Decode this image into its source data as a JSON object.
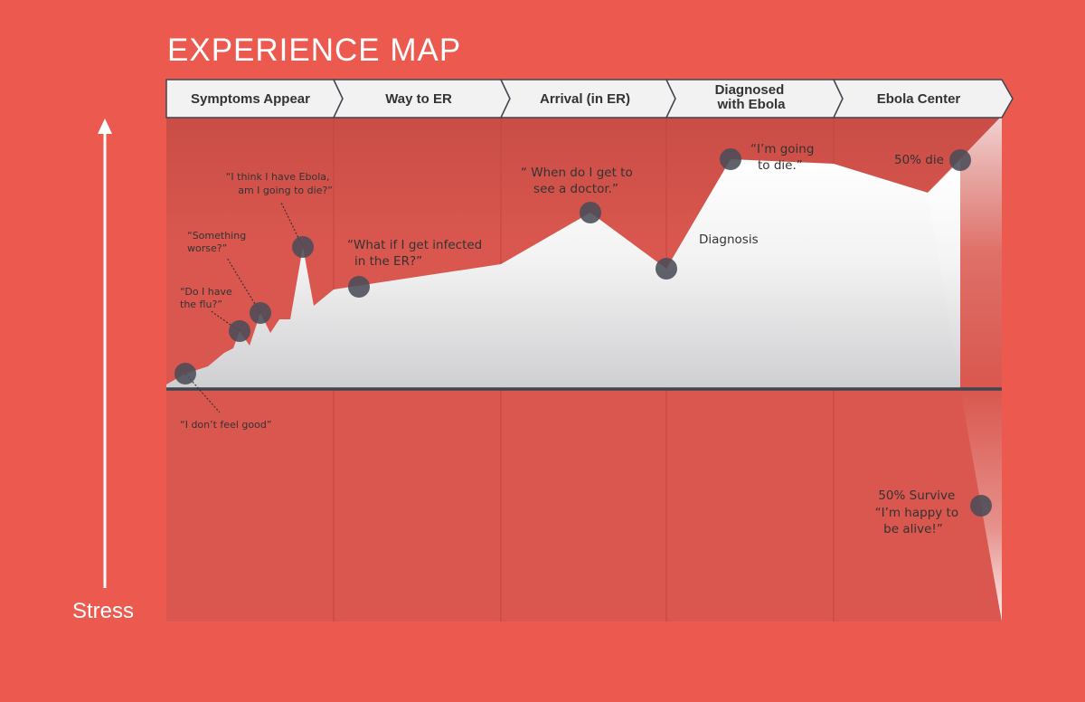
{
  "title": "EXPERIENCE MAP",
  "y_axis_label": "Stress",
  "phases": [
    {
      "lines": [
        "Symptoms Appear"
      ]
    },
    {
      "lines": [
        "Way to ER"
      ]
    },
    {
      "lines": [
        "Arrival (in ER)"
      ]
    },
    {
      "lines": [
        "Diagnosed",
        "with Ebola"
      ]
    },
    {
      "lines": [
        "Ebola Center"
      ]
    }
  ],
  "annotations": [
    {
      "lines": [
        "“I don’t feel good”"
      ],
      "size": "sm"
    },
    {
      "lines": [
        "“Do I have",
        "the flu?”"
      ],
      "size": "sm"
    },
    {
      "lines": [
        "“Something",
        "worse?”"
      ],
      "size": "sm"
    },
    {
      "lines": [
        "“I think I have Ebola,",
        "am I going to die?”"
      ],
      "size": "sm"
    },
    {
      "lines": [
        "“What if I get infected",
        "in the ER?”"
      ],
      "size": "md"
    },
    {
      "lines": [
        "“ When do I get to",
        "see a doctor.”"
      ],
      "size": "md"
    },
    {
      "lines": [
        "Diagnosis"
      ],
      "size": "md"
    },
    {
      "lines": [
        "“I’m going",
        "to die.”"
      ],
      "size": "md"
    },
    {
      "lines": [
        "50% die"
      ],
      "size": "md"
    },
    {
      "lines": [
        "50% Survive",
        "“I’m happy to",
        "be alive!”"
      ],
      "size": "md"
    }
  ],
  "colors": {
    "background": "#ec5a4f",
    "panel": "#d9574e",
    "header": "#f2f2f2",
    "curve_fill": "#f3f3f3",
    "baseline": "#41454f",
    "marker": "#4a4c58"
  }
}
